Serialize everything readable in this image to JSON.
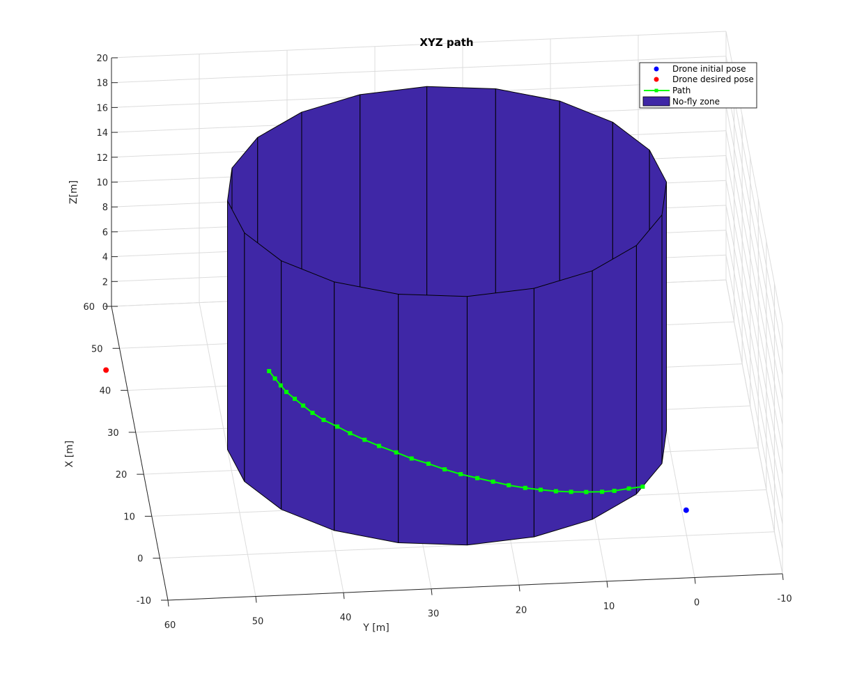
{
  "chart_data": {
    "type": "3d-plot",
    "title": "XYZ path",
    "xlabel": "X [m]",
    "ylabel": "Y [m]",
    "zlabel": "Z[m]",
    "xlim": [
      -10,
      60
    ],
    "ylim": [
      -10,
      60
    ],
    "zlim": [
      0,
      20
    ],
    "x_ticks": [
      "60",
      "50",
      "40",
      "30",
      "20",
      "10",
      "0",
      "-10"
    ],
    "y_ticks": [
      "60",
      "50",
      "40",
      "30",
      "20",
      "10",
      "0",
      "-10"
    ],
    "z_ticks": [
      "20",
      "18",
      "16",
      "14",
      "12",
      "10",
      "8",
      "6",
      "4",
      "2",
      "0"
    ],
    "grid": true,
    "legend_position": "top-right",
    "legend": [
      {
        "label": "Drone initial pose",
        "kind": "marker",
        "color": "#0000ff"
      },
      {
        "label": "Drone desired pose",
        "kind": "marker",
        "color": "#ff0000"
      },
      {
        "label": "Path",
        "kind": "line-marker",
        "color": "#00ff00"
      },
      {
        "label": "No-fly zone",
        "kind": "patch",
        "color": "#3f27a6"
      }
    ],
    "series": [
      {
        "name": "Drone initial pose",
        "type": "point",
        "color": "#0000ff",
        "point": {
          "x": 6,
          "y": -0.5,
          "z": 0
        }
      },
      {
        "name": "Drone desired pose",
        "type": "point",
        "color": "#ff0000",
        "point": {
          "x": 45,
          "y": 62,
          "z": 0
        }
      },
      {
        "name": "Path",
        "type": "line",
        "color": "#00ff00",
        "points": [
          {
            "x": 43.1,
            "y": 43.6,
            "z": 0
          },
          {
            "x": 41.3,
            "y": 43.1,
            "z": 0
          },
          {
            "x": 39.6,
            "y": 42.6,
            "z": 0
          },
          {
            "x": 38.0,
            "y": 42.1,
            "z": 0
          },
          {
            "x": 36.3,
            "y": 41.3,
            "z": 0
          },
          {
            "x": 34.6,
            "y": 40.5,
            "z": 0
          },
          {
            "x": 32.8,
            "y": 39.6,
            "z": 0
          },
          {
            "x": 31.0,
            "y": 38.5,
            "z": 0
          },
          {
            "x": 29.3,
            "y": 37.1,
            "z": 0
          },
          {
            "x": 27.6,
            "y": 35.8,
            "z": 0
          },
          {
            "x": 25.9,
            "y": 34.3,
            "z": 0
          },
          {
            "x": 24.3,
            "y": 32.8,
            "z": 0
          },
          {
            "x": 22.6,
            "y": 31.0,
            "z": 0
          },
          {
            "x": 21.0,
            "y": 29.4,
            "z": 0
          },
          {
            "x": 19.6,
            "y": 27.6,
            "z": 0
          },
          {
            "x": 18.1,
            "y": 25.9,
            "z": 0
          },
          {
            "x": 16.8,
            "y": 24.2,
            "z": 0
          },
          {
            "x": 15.7,
            "y": 22.4,
            "z": 0
          },
          {
            "x": 14.7,
            "y": 20.7,
            "z": 0
          },
          {
            "x": 13.7,
            "y": 19.0,
            "z": 0
          },
          {
            "x": 12.9,
            "y": 17.2,
            "z": 0
          },
          {
            "x": 12.3,
            "y": 15.5,
            "z": 0
          },
          {
            "x": 11.8,
            "y": 13.8,
            "z": 0
          },
          {
            "x": 11.5,
            "y": 12.1,
            "z": 0
          },
          {
            "x": 11.3,
            "y": 10.4,
            "z": 0
          },
          {
            "x": 11.2,
            "y": 8.6,
            "z": 0
          },
          {
            "x": 11.3,
            "y": 7.2,
            "z": 0
          },
          {
            "x": 11.7,
            "y": 5.5,
            "z": 0
          },
          {
            "x": 12.0,
            "y": 3.9,
            "z": 0
          }
        ]
      },
      {
        "name": "No-fly zone",
        "type": "cylinder",
        "color": "#3f27a6",
        "center": {
          "x": 25,
          "y": 25
        },
        "radius": 25,
        "sides": 20,
        "z_range": [
          0,
          20
        ]
      }
    ]
  }
}
